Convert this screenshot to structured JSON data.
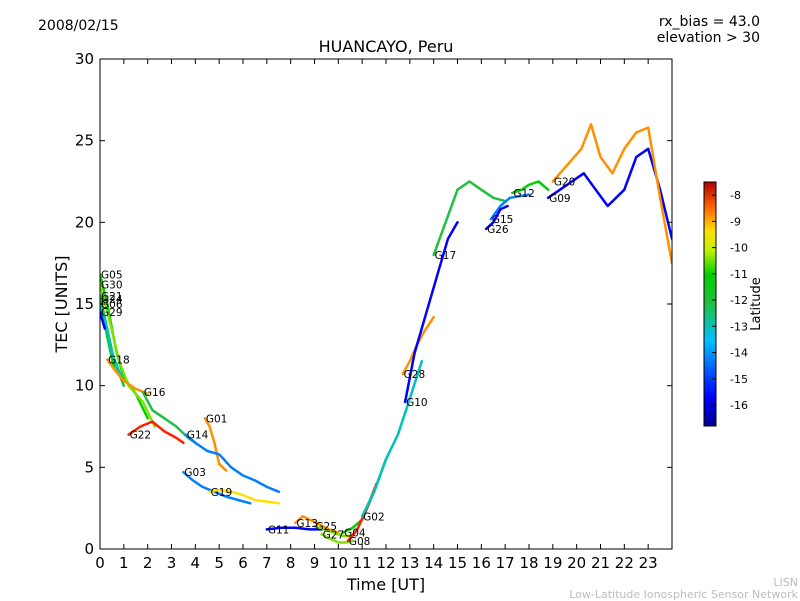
{
  "header": {
    "date": "2008/02/15",
    "rx_bias": "rx_bias = 43.0",
    "elevation": "elevation > 30"
  },
  "credits": {
    "line1": "LISN",
    "line2": "Low-Latitude Ionospheric Sensor Network"
  },
  "chart_data": {
    "type": "scatter",
    "title": "HUANCAYO, Peru",
    "xlabel": "Time [UT]",
    "ylabel": "TEC [UNITS]",
    "xlim": [
      0,
      24
    ],
    "ylim": [
      0,
      30
    ],
    "xticks": [
      0,
      1,
      2,
      3,
      4,
      5,
      6,
      7,
      8,
      9,
      10,
      11,
      12,
      13,
      14,
      15,
      16,
      17,
      18,
      19,
      20,
      21,
      22,
      23
    ],
    "yticks": [
      0,
      5,
      10,
      15,
      20,
      25,
      30
    ],
    "colorbar": {
      "label": "Latitude",
      "range": [
        -16.8,
        -7.5
      ],
      "ticks": [
        -8,
        -9,
        -10,
        -11,
        -12,
        -13,
        -14,
        -15,
        -16
      ]
    },
    "colors": [
      "#00008f",
      "#0000ff",
      "#0080ff",
      "#00c0c0",
      "#20c040",
      "#00d000",
      "#80e000",
      "#ffe000",
      "#ff9000",
      "#ff2000",
      "#a00000"
    ],
    "series": [
      {
        "name": "G05",
        "x": [
          0.0,
          0.3,
          0.7,
          1.0,
          1.5,
          2.0
        ],
        "y": [
          16.8,
          15.0,
          12.0,
          10.5,
          9.5,
          8.0
        ],
        "lat": -12.5
      },
      {
        "name": "G30",
        "x": [
          0.0,
          0.4,
          0.8,
          1.2,
          1.8,
          2.3
        ],
        "y": [
          16.2,
          14.0,
          11.5,
          10.0,
          9.0,
          7.5
        ],
        "lat": -11.0
      },
      {
        "name": "G21",
        "x": [
          0.0,
          0.3,
          0.6,
          1.0
        ],
        "y": [
          15.5,
          13.5,
          11.5,
          10.0
        ],
        "lat": -13.5
      },
      {
        "name": "G24",
        "x": [
          0.0,
          0.3,
          0.6,
          1.0
        ],
        "y": [
          15.3,
          13.0,
          11.0,
          10.3
        ],
        "lat": -12.0
      },
      {
        "name": "G06",
        "x": [
          0.0,
          0.2,
          0.5,
          0.9
        ],
        "y": [
          15.0,
          14.0,
          12.0,
          10.5
        ],
        "lat": -14.0
      },
      {
        "name": "G29",
        "x": [
          0.0,
          0.1,
          0.2
        ],
        "y": [
          14.5,
          14.0,
          13.5
        ],
        "lat": -16.0
      },
      {
        "name": "G18",
        "x": [
          0.3,
          0.6,
          1.0,
          1.5,
          2.0
        ],
        "y": [
          11.6,
          11.0,
          10.3,
          9.8,
          9.5
        ],
        "lat": -9.0
      },
      {
        "name": "G16",
        "x": [
          1.8,
          2.2,
          2.7,
          3.2,
          3.7,
          4.0
        ],
        "y": [
          9.6,
          8.5,
          8.0,
          7.5,
          6.8,
          6.5
        ],
        "lat": -13.0
      },
      {
        "name": "G22",
        "x": [
          1.2,
          1.7,
          2.2,
          2.7,
          3.2,
          3.5
        ],
        "y": [
          7.0,
          7.5,
          7.8,
          7.2,
          6.8,
          6.5
        ],
        "lat": -8.5
      },
      {
        "name": "G01",
        "x": [
          4.4,
          4.6,
          4.8,
          5.0,
          5.3
        ],
        "y": [
          8.0,
          7.5,
          6.5,
          5.2,
          4.8
        ],
        "lat": -9.0
      },
      {
        "name": "G14",
        "x": [
          3.6,
          4.0,
          4.5,
          5.0,
          5.5,
          6.0,
          6.5,
          7.0,
          7.5
        ],
        "y": [
          7.0,
          6.5,
          6.0,
          5.8,
          5.0,
          4.5,
          4.2,
          3.8,
          3.5
        ],
        "lat": -15.0
      },
      {
        "name": "G03",
        "x": [
          3.5,
          3.9,
          4.3,
          4.8,
          5.3,
          5.8,
          6.3
        ],
        "y": [
          4.7,
          4.2,
          3.8,
          3.5,
          3.2,
          3.0,
          2.8
        ],
        "lat": -14.8
      },
      {
        "name": "G19",
        "x": [
          4.6,
          5.0,
          5.5,
          6.0,
          6.5,
          7.0,
          7.5
        ],
        "y": [
          3.5,
          3.6,
          3.5,
          3.3,
          3.0,
          2.9,
          2.8
        ],
        "lat": -10.0
      },
      {
        "name": "G11",
        "x": [
          7.0,
          7.6,
          8.2,
          8.8,
          9.3
        ],
        "y": [
          1.2,
          1.3,
          1.3,
          1.2,
          1.2
        ],
        "lat": -16.0
      },
      {
        "name": "G13",
        "x": [
          8.2,
          8.5,
          8.8,
          9.2,
          9.6,
          10.0
        ],
        "y": [
          1.6,
          2.0,
          1.8,
          1.5,
          1.2,
          1.0
        ],
        "lat": -9.0
      },
      {
        "name": "G25",
        "x": [
          9.0,
          9.4,
          9.8,
          10.2,
          10.6
        ],
        "y": [
          1.4,
          1.2,
          1.0,
          0.8,
          0.8
        ],
        "lat": -11.5
      },
      {
        "name": "G27",
        "x": [
          9.3,
          9.7,
          10.0,
          10.3,
          10.6
        ],
        "y": [
          0.9,
          0.6,
          0.4,
          0.4,
          0.5
        ],
        "lat": -11.0
      },
      {
        "name": "G04",
        "x": [
          10.2,
          10.6,
          11.0,
          11.5,
          12.0
        ],
        "y": [
          1.0,
          1.3,
          1.8,
          3.5,
          5.5
        ],
        "lat": -12.0
      },
      {
        "name": "G08",
        "x": [
          10.4,
          10.8,
          11.2,
          11.6
        ],
        "y": [
          0.5,
          1.2,
          2.5,
          4.0
        ],
        "lat": -8.5
      },
      {
        "name": "G02",
        "x": [
          11.0,
          11.5,
          12.0,
          12.5,
          13.0,
          13.5
        ],
        "y": [
          2.0,
          3.5,
          5.5,
          7.0,
          9.2,
          11.5
        ],
        "lat": -14.0
      },
      {
        "name": "G28",
        "x": [
          12.7,
          13.0,
          13.3,
          13.6,
          14.0
        ],
        "y": [
          10.7,
          11.5,
          12.5,
          13.3,
          14.2
        ],
        "lat": -9.0
      },
      {
        "name": "G10",
        "x": [
          12.8,
          13.2,
          13.7,
          14.2,
          14.6,
          15.0
        ],
        "y": [
          9.0,
          12.0,
          14.5,
          17.0,
          19.0,
          20.0
        ],
        "lat": -15.5
      },
      {
        "name": "G17",
        "x": [
          14.0,
          14.5,
          15.0,
          15.5,
          16.0,
          16.5,
          17.0
        ],
        "y": [
          18.0,
          20.0,
          22.0,
          22.5,
          22.0,
          21.5,
          21.3
        ],
        "lat": -12.8
      },
      {
        "name": "G15",
        "x": [
          16.4,
          16.8,
          17.2,
          17.6,
          18.0
        ],
        "y": [
          20.2,
          21.0,
          21.5,
          21.6,
          21.7
        ],
        "lat": -14.5
      },
      {
        "name": "G26",
        "x": [
          16.2,
          16.5,
          16.8,
          17.1
        ],
        "y": [
          19.6,
          20.0,
          20.8,
          21.0
        ],
        "lat": -15.5
      },
      {
        "name": "G12",
        "x": [
          17.3,
          17.7,
          18.0,
          18.4,
          18.8
        ],
        "y": [
          21.8,
          22.0,
          22.3,
          22.5,
          22.0
        ],
        "lat": -12.0
      },
      {
        "name": "G09",
        "x": [
          18.8,
          19.3,
          19.8,
          20.3,
          20.8,
          21.3,
          22.0,
          22.5,
          23.0,
          23.5,
          24.0
        ],
        "y": [
          21.5,
          22.0,
          22.5,
          23.0,
          22.0,
          21.0,
          22.0,
          24.0,
          24.5,
          22.0,
          19.0
        ],
        "lat": -16.0
      },
      {
        "name": "G20",
        "x": [
          19.0,
          19.6,
          20.2,
          20.6,
          21.0,
          21.5,
          22.0,
          22.5,
          23.0,
          23.5,
          24.0
        ],
        "y": [
          22.5,
          23.5,
          24.5,
          26.0,
          24.0,
          23.0,
          24.5,
          25.5,
          25.8,
          21.5,
          17.5
        ],
        "lat": -9.5
      }
    ]
  }
}
